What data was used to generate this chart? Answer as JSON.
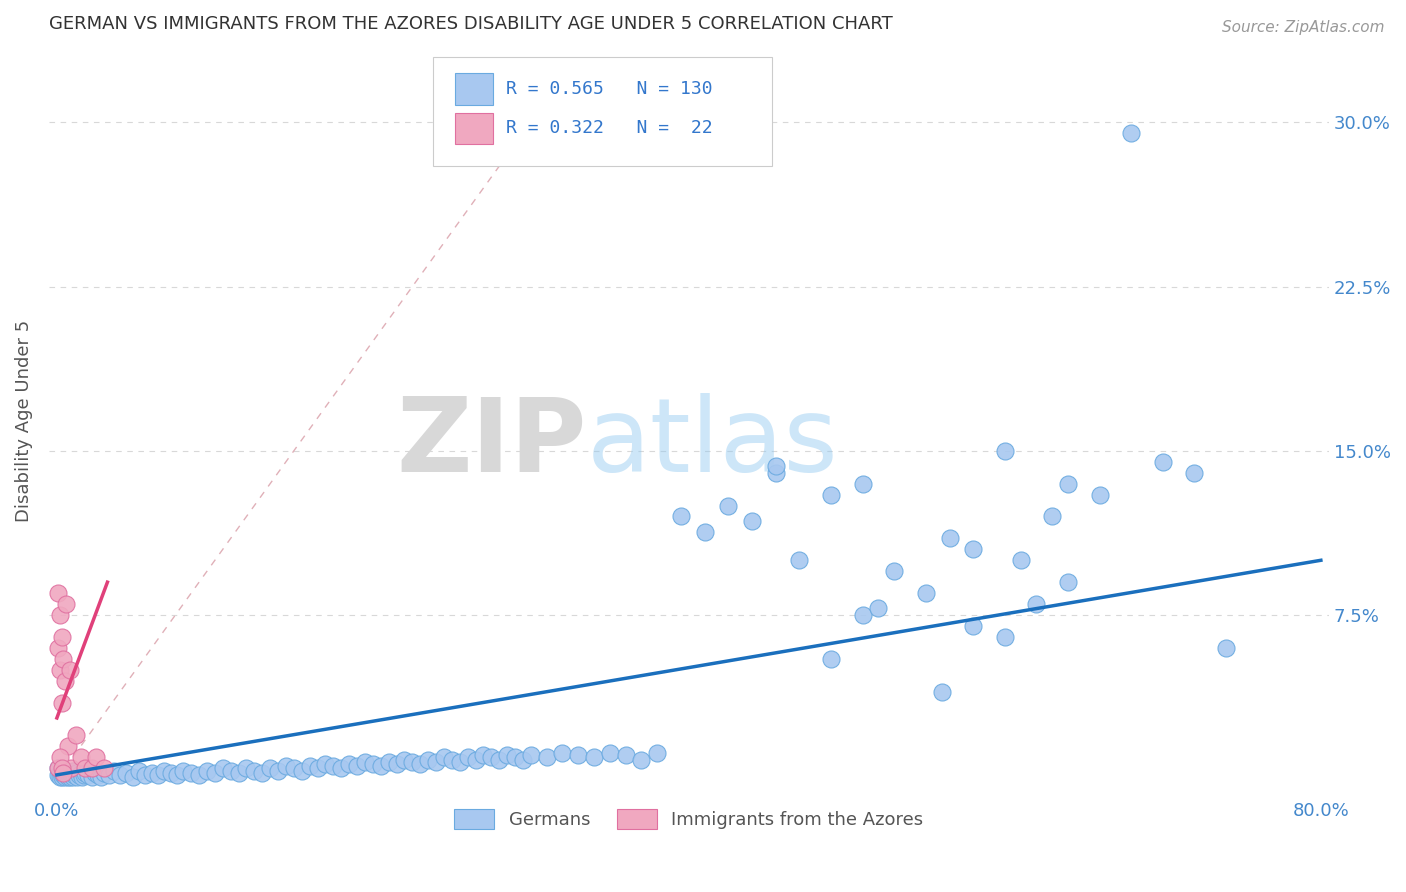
{
  "title": "GERMAN VS IMMIGRANTS FROM THE AZORES DISABILITY AGE UNDER 5 CORRELATION CHART",
  "source": "Source: ZipAtlas.com",
  "ylabel": "Disability Age Under 5",
  "xlim": [
    -0.005,
    0.805
  ],
  "ylim": [
    -0.008,
    0.335
  ],
  "ytick_positions": [
    0.075,
    0.15,
    0.225,
    0.3
  ],
  "ytick_labels": [
    "7.5%",
    "15.0%",
    "22.5%",
    "30.0%"
  ],
  "blue_R": "0.565",
  "blue_N": "130",
  "pink_R": "0.322",
  "pink_N": "22",
  "blue_color": "#a8c8f0",
  "pink_color": "#f0a8c0",
  "blue_edge_color": "#6aaae0",
  "pink_edge_color": "#e070a0",
  "blue_line_color": "#1a6fbd",
  "pink_line_color": "#e0407a",
  "ref_line_color": "#e0b0b8",
  "grid_color": "#d8d8d8",
  "legend_label_blue": "Germans",
  "legend_label_pink": "Immigrants from the Azores",
  "title_color": "#333333",
  "axis_label_color": "#555555",
  "tick_color": "#4488cc",
  "watermark_zip": "ZIP",
  "watermark_atlas": "atlas",
  "blue_scatter_x": [
    0.001,
    0.001,
    0.002,
    0.002,
    0.003,
    0.003,
    0.003,
    0.004,
    0.004,
    0.005,
    0.005,
    0.006,
    0.006,
    0.007,
    0.007,
    0.008,
    0.008,
    0.009,
    0.009,
    0.01,
    0.01,
    0.011,
    0.012,
    0.013,
    0.014,
    0.015,
    0.016,
    0.017,
    0.018,
    0.02,
    0.022,
    0.024,
    0.026,
    0.028,
    0.03,
    0.033,
    0.036,
    0.04,
    0.044,
    0.048,
    0.052,
    0.056,
    0.06,
    0.064,
    0.068,
    0.072,
    0.076,
    0.08,
    0.085,
    0.09,
    0.095,
    0.1,
    0.105,
    0.11,
    0.115,
    0.12,
    0.125,
    0.13,
    0.135,
    0.14,
    0.145,
    0.15,
    0.155,
    0.16,
    0.165,
    0.17,
    0.175,
    0.18,
    0.185,
    0.19,
    0.195,
    0.2,
    0.205,
    0.21,
    0.215,
    0.22,
    0.225,
    0.23,
    0.235,
    0.24,
    0.245,
    0.25,
    0.255,
    0.26,
    0.265,
    0.27,
    0.275,
    0.28,
    0.285,
    0.29,
    0.295,
    0.3,
    0.31,
    0.32,
    0.33,
    0.34,
    0.35,
    0.36,
    0.37,
    0.38,
    0.395,
    0.41,
    0.425,
    0.44,
    0.455,
    0.47,
    0.49,
    0.51,
    0.53,
    0.55,
    0.565,
    0.58,
    0.6,
    0.62,
    0.64,
    0.66,
    0.68,
    0.7,
    0.72,
    0.74,
    0.455,
    0.6,
    0.64,
    0.52,
    0.49,
    0.56,
    0.61,
    0.51,
    0.58,
    0.63
  ],
  "blue_scatter_y": [
    0.005,
    0.002,
    0.003,
    0.001,
    0.002,
    0.004,
    0.001,
    0.003,
    0.002,
    0.001,
    0.003,
    0.002,
    0.004,
    0.001,
    0.003,
    0.002,
    0.001,
    0.003,
    0.002,
    0.001,
    0.004,
    0.002,
    0.003,
    0.001,
    0.002,
    0.003,
    0.001,
    0.002,
    0.003,
    0.002,
    0.001,
    0.003,
    0.002,
    0.001,
    0.003,
    0.002,
    0.004,
    0.002,
    0.003,
    0.001,
    0.004,
    0.002,
    0.003,
    0.002,
    0.004,
    0.003,
    0.002,
    0.004,
    0.003,
    0.002,
    0.004,
    0.003,
    0.005,
    0.004,
    0.003,
    0.005,
    0.004,
    0.003,
    0.005,
    0.004,
    0.006,
    0.005,
    0.004,
    0.006,
    0.005,
    0.007,
    0.006,
    0.005,
    0.007,
    0.006,
    0.008,
    0.007,
    0.006,
    0.008,
    0.007,
    0.009,
    0.008,
    0.007,
    0.009,
    0.008,
    0.01,
    0.009,
    0.008,
    0.01,
    0.009,
    0.011,
    0.01,
    0.009,
    0.011,
    0.01,
    0.009,
    0.011,
    0.01,
    0.012,
    0.011,
    0.01,
    0.012,
    0.011,
    0.009,
    0.012,
    0.12,
    0.113,
    0.125,
    0.118,
    0.14,
    0.1,
    0.13,
    0.075,
    0.095,
    0.085,
    0.11,
    0.07,
    0.065,
    0.08,
    0.09,
    0.13,
    0.295,
    0.145,
    0.14,
    0.06,
    0.143,
    0.15,
    0.135,
    0.078,
    0.055,
    0.04,
    0.1,
    0.135,
    0.105,
    0.12
  ],
  "pink_scatter_x": [
    0.001,
    0.001,
    0.002,
    0.002,
    0.003,
    0.003,
    0.004,
    0.005,
    0.006,
    0.007,
    0.008,
    0.009,
    0.012,
    0.015,
    0.018,
    0.022,
    0.025,
    0.03,
    0.001,
    0.002,
    0.003,
    0.004
  ],
  "pink_scatter_y": [
    0.06,
    0.085,
    0.05,
    0.075,
    0.035,
    0.065,
    0.055,
    0.045,
    0.08,
    0.015,
    0.05,
    0.005,
    0.02,
    0.01,
    0.005,
    0.005,
    0.01,
    0.005,
    0.005,
    0.01,
    0.005,
    0.003
  ],
  "blue_trend_x0": 0.0,
  "blue_trend_y0": 0.002,
  "blue_trend_x1": 0.8,
  "blue_trend_y1": 0.1,
  "pink_trend_x0": 0.0,
  "pink_trend_y0": 0.028,
  "pink_trend_x1": 0.032,
  "pink_trend_y1": 0.09
}
